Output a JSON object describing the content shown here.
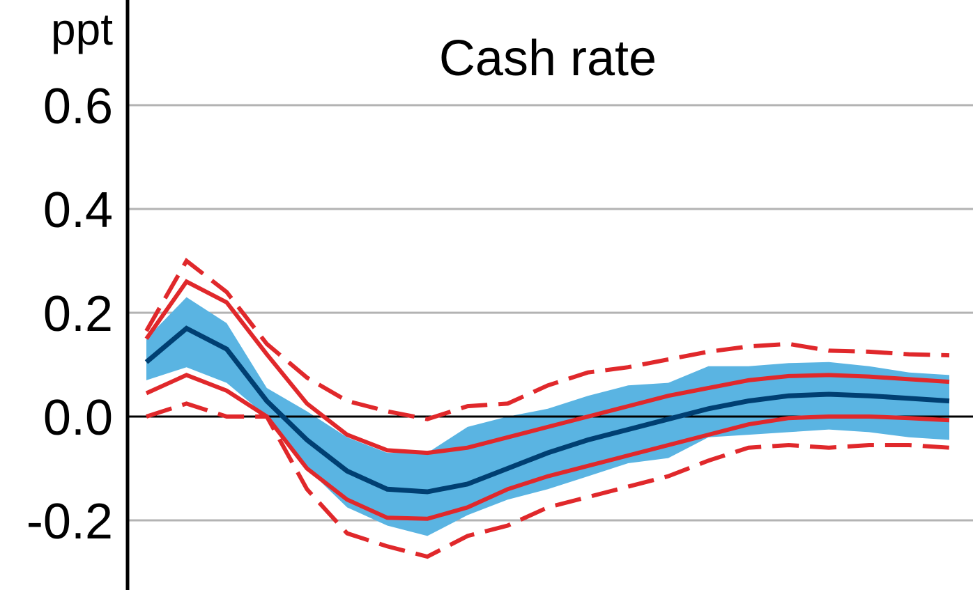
{
  "chart_data": {
    "type": "line",
    "title": "Cash rate",
    "unit": "ppt",
    "ylim": [
      -0.32,
      0.8
    ],
    "yticks": [
      {
        "value": 0.6,
        "label": "0.6"
      },
      {
        "value": 0.4,
        "label": "0.4"
      },
      {
        "value": 0.2,
        "label": "0.2"
      },
      {
        "value": 0.0,
        "label": "0.0"
      },
      {
        "value": -0.2,
        "label": "-0.2"
      }
    ],
    "x": [
      0,
      1,
      2,
      3,
      4,
      5,
      6,
      7,
      8,
      9,
      10,
      11,
      12,
      13,
      14,
      15,
      16,
      17,
      18,
      19,
      20
    ],
    "grid": true,
    "colors": {
      "band": "#5ab4e2",
      "median": "#003f72",
      "red": "#e0282b",
      "grid": "#b3b3b3",
      "axis": "#000000"
    },
    "band": {
      "upper": [
        0.15,
        0.23,
        0.18,
        0.055,
        0.01,
        -0.04,
        -0.07,
        -0.07,
        -0.02,
        0.0,
        0.015,
        0.04,
        0.06,
        0.065,
        0.097,
        0.097,
        0.103,
        0.105,
        0.097,
        0.085,
        0.08
      ],
      "lower": [
        0.07,
        0.095,
        0.065,
        0.0,
        -0.1,
        -0.175,
        -0.21,
        -0.23,
        -0.19,
        -0.16,
        -0.14,
        -0.115,
        -0.09,
        -0.08,
        -0.04,
        -0.035,
        -0.03,
        -0.025,
        -0.03,
        -0.04,
        -0.045
      ]
    },
    "series": [
      {
        "role": "median",
        "style": "solid",
        "values": [
          0.105,
          0.17,
          0.13,
          0.03,
          -0.045,
          -0.105,
          -0.14,
          -0.145,
          -0.13,
          -0.1,
          -0.07,
          -0.045,
          -0.025,
          -0.005,
          0.015,
          0.03,
          0.04,
          0.043,
          0.04,
          0.035,
          0.03
        ]
      },
      {
        "role": "upper-inner",
        "style": "solid",
        "values": [
          0.15,
          0.26,
          0.22,
          0.12,
          0.025,
          -0.035,
          -0.065,
          -0.07,
          -0.06,
          -0.04,
          -0.02,
          0.0,
          0.02,
          0.04,
          0.055,
          0.07,
          0.078,
          0.08,
          0.077,
          0.072,
          0.067
        ]
      },
      {
        "role": "lower-inner",
        "style": "solid",
        "values": [
          0.045,
          0.08,
          0.05,
          0.0,
          -0.1,
          -0.16,
          -0.195,
          -0.197,
          -0.175,
          -0.14,
          -0.115,
          -0.095,
          -0.075,
          -0.055,
          -0.035,
          -0.015,
          -0.003,
          0.0,
          0.0,
          -0.003,
          -0.007
        ]
      },
      {
        "role": "upper-outer",
        "style": "dashed",
        "values": [
          0.165,
          0.3,
          0.24,
          0.14,
          0.075,
          0.03,
          0.01,
          -0.005,
          0.02,
          0.025,
          0.06,
          0.085,
          0.095,
          0.11,
          0.125,
          0.135,
          0.14,
          0.127,
          0.125,
          0.12,
          0.118
        ]
      },
      {
        "role": "lower-outer",
        "style": "dashed",
        "values": [
          0.0,
          0.025,
          0.0,
          0.0,
          -0.14,
          -0.225,
          -0.25,
          -0.27,
          -0.23,
          -0.21,
          -0.175,
          -0.155,
          -0.135,
          -0.115,
          -0.085,
          -0.06,
          -0.055,
          -0.06,
          -0.055,
          -0.055,
          -0.06
        ]
      }
    ]
  }
}
